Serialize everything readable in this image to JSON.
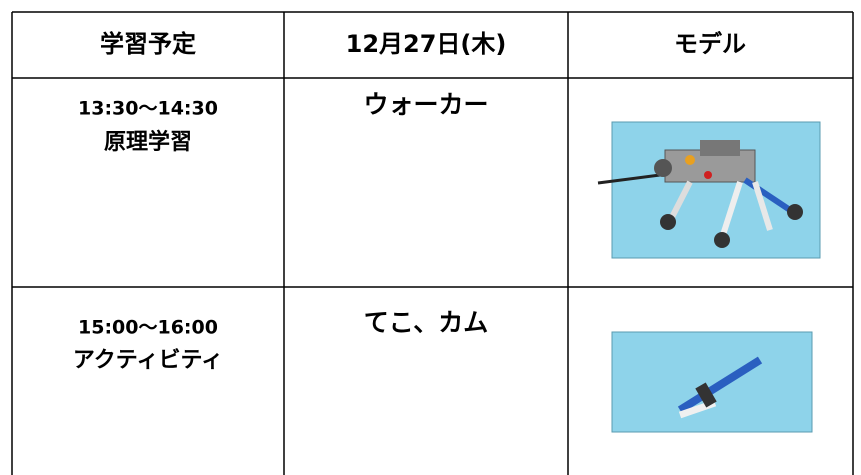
{
  "table": {
    "header": [
      "学習予定",
      "12月27日(木)",
      "モデル"
    ],
    "rows": [
      [
        "13:30～14:30",
        "原理学習",
        "ウォーカー"
      ],
      [
        "15:00～16:00",
        "アクティビティ",
        "てこ、カム"
      ]
    ]
  }
}
